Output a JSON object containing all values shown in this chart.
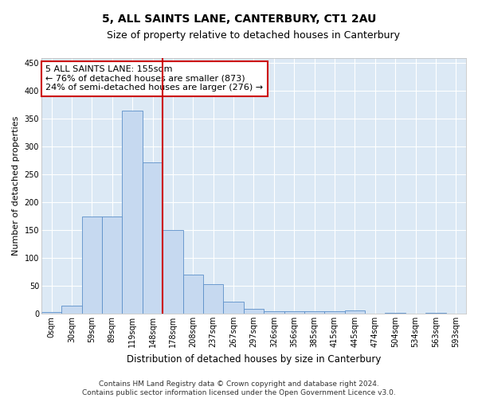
{
  "title": "5, ALL SAINTS LANE, CANTERBURY, CT1 2AU",
  "subtitle": "Size of property relative to detached houses in Canterbury",
  "xlabel": "Distribution of detached houses by size in Canterbury",
  "ylabel": "Number of detached properties",
  "categories": [
    "0sqm",
    "30sqm",
    "59sqm",
    "89sqm",
    "119sqm",
    "148sqm",
    "178sqm",
    "208sqm",
    "237sqm",
    "267sqm",
    "297sqm",
    "326sqm",
    "356sqm",
    "385sqm",
    "415sqm",
    "445sqm",
    "474sqm",
    "504sqm",
    "534sqm",
    "563sqm",
    "593sqm"
  ],
  "values": [
    3,
    15,
    175,
    175,
    365,
    272,
    150,
    70,
    53,
    22,
    8,
    5,
    5,
    5,
    5,
    6,
    0,
    1,
    0,
    1,
    0
  ],
  "bar_color": "#c6d9f0",
  "bar_edgecolor": "#5b8fc9",
  "vline_x": 5.5,
  "vline_color": "#cc0000",
  "annotation_text": "5 ALL SAINTS LANE: 155sqm\n← 76% of detached houses are smaller (873)\n24% of semi-detached houses are larger (276) →",
  "annotation_box_color": "#ffffff",
  "annotation_box_edgecolor": "#cc0000",
  "ylim": [
    0,
    460
  ],
  "yticks": [
    0,
    50,
    100,
    150,
    200,
    250,
    300,
    350,
    400,
    450
  ],
  "bg_color": "#dce9f5",
  "grid_color": "#ffffff",
  "footer": "Contains HM Land Registry data © Crown copyright and database right 2024.\nContains public sector information licensed under the Open Government Licence v3.0.",
  "title_fontsize": 10,
  "subtitle_fontsize": 9,
  "xlabel_fontsize": 8.5,
  "ylabel_fontsize": 8,
  "tick_fontsize": 7,
  "annotation_fontsize": 8,
  "footer_fontsize": 6.5
}
